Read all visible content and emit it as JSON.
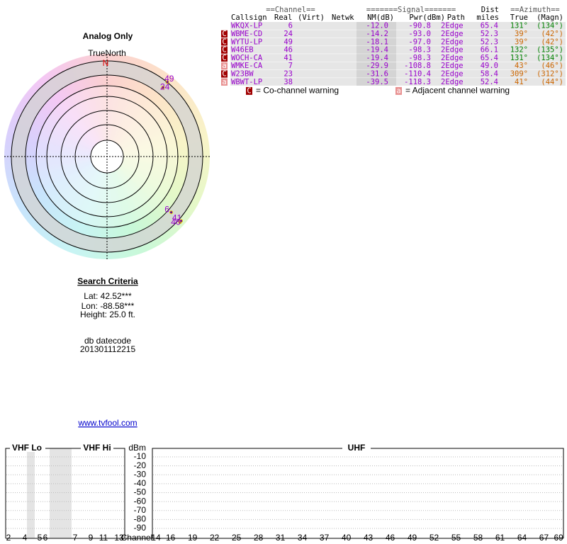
{
  "report": {
    "title": "Analog Only",
    "compass_label": "TrueNorth",
    "north": "N"
  },
  "search": {
    "heading": "Search Criteria",
    "lat": "Lat: 42.52***",
    "lon": "Lon: -88.58***",
    "height": "Height: 25.0 ft.",
    "datecode_label": "db datecode",
    "datecode": "201301112215",
    "link": "www.tvfool.com"
  },
  "table": {
    "group_headers": [
      "==Channel==",
      "=======Signal=======",
      "Dist",
      "==Azimuth=="
    ],
    "headers": [
      "Callsign",
      "Real",
      "(Virt)",
      "Netwk",
      "NM(dB)",
      "Pwr(dBm)",
      "Path",
      "miles",
      "True",
      "(Magn)"
    ],
    "rows": [
      {
        "callsign": "WKQX-LP",
        "real": "6",
        "nm": {
          "value": -12,
          "label": "-12.0"
        },
        "pwr": "-90.8",
        "path": "2Edge",
        "dist": "65.4",
        "az_true": {
          "value": 131,
          "label": "131°"
        },
        "az_magn": "(134°)"
      },
      {
        "warn": "C",
        "callsign": "WBME-CD",
        "real": "24",
        "nm": {
          "value": -14.2,
          "label": "-14.2"
        },
        "pwr": "-93.0",
        "path": "2Edge",
        "dist": "52.3",
        "az_true": {
          "value": 39,
          "label": "39°"
        },
        "az_magn": "(42°)"
      },
      {
        "warn": "C",
        "callsign": "WYTU-LP",
        "real": "49",
        "nm": {
          "value": -18.1,
          "label": "-18.1"
        },
        "pwr": "-97.0",
        "path": "2Edge",
        "dist": "52.3",
        "az_true": {
          "value": 39,
          "label": "39°"
        },
        "az_magn": "(42°)"
      },
      {
        "warn": "C",
        "callsign": "W46EB",
        "real": "46",
        "nm": {
          "value": -19.4,
          "label": "-19.4"
        },
        "pwr": "-98.3",
        "path": "2Edge",
        "dist": "66.1",
        "az_true": {
          "value": 132,
          "label": "132°"
        },
        "az_magn": "(135°)"
      },
      {
        "warn": "C",
        "callsign": "WOCH-CA",
        "real": "41",
        "nm": {
          "value": -19.4,
          "label": "-19.4"
        },
        "pwr": "-98.3",
        "path": "2Edge",
        "dist": "65.4",
        "az_true": {
          "value": 131,
          "label": "131°"
        },
        "az_magn": "(134°)"
      },
      {
        "warn": "a",
        "callsign": "WMKE-CA",
        "real": "7",
        "nm": {
          "value": -29.9,
          "label": "-29.9"
        },
        "pwr": "-108.8",
        "path": "2Edge",
        "dist": "49.0",
        "az_true": {
          "value": 43,
          "label": "43°"
        },
        "az_magn": "(46°)"
      },
      {
        "warn": "C",
        "callsign": "W23BW",
        "real": "23",
        "nm": {
          "value": -31.6,
          "label": "-31.6"
        },
        "pwr": "-110.4",
        "path": "2Edge",
        "dist": "58.4",
        "az_true": {
          "value": 309,
          "label": "309°"
        },
        "az_magn": "(312°)"
      },
      {
        "warn": "a",
        "callsign": "WBWT-LP",
        "real": "38",
        "nm": {
          "value": -39.5,
          "label": "-39.5"
        },
        "pwr": "-118.3",
        "path": "2Edge",
        "dist": "52.4",
        "az_true": {
          "value": 41,
          "label": "41°"
        },
        "az_magn": "(44°)"
      }
    ],
    "legend": [
      {
        "icon": "C",
        "text": "= Co-channel warning"
      },
      {
        "icon": "a",
        "text": "= Adjacent channel warning"
      }
    ]
  },
  "spectrum": {
    "sections": [
      "VHF Lo",
      "VHF Hi",
      "UHF"
    ],
    "unit": "dBm",
    "dbm_ticks": [
      -10,
      -20,
      -30,
      -40,
      -50,
      -60,
      -70,
      -80,
      -90
    ],
    "axis_label": "Channel",
    "vhf_channels": [
      "2",
      "4",
      "5",
      "6",
      "7",
      "9",
      "11",
      "13"
    ],
    "uhf_channels": [
      "14",
      "16",
      "19",
      "22",
      "25",
      "28",
      "31",
      "34",
      "37",
      "40",
      "43",
      "46",
      "49",
      "52",
      "55",
      "58",
      "61",
      "64",
      "67",
      "69"
    ]
  }
}
